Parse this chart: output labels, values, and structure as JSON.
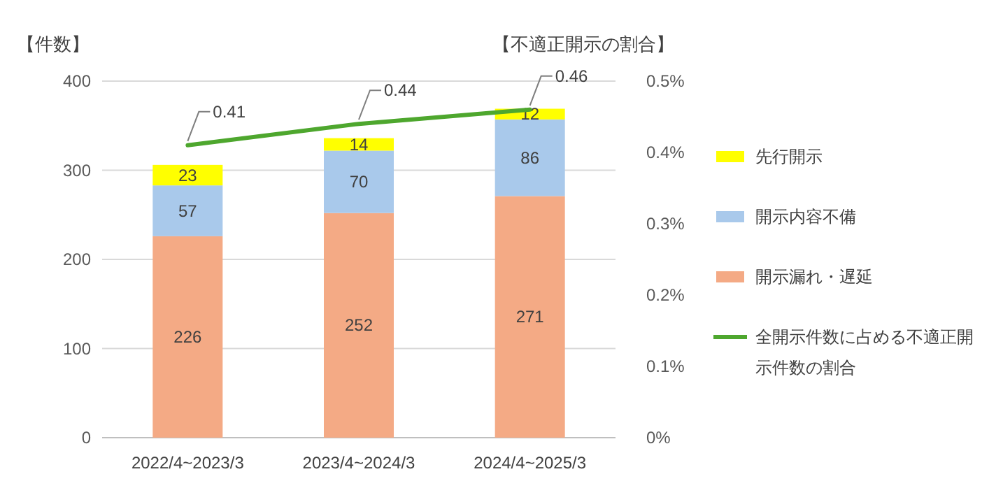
{
  "chart_data": {
    "type": "bar",
    "stacked": true,
    "ylabel": "【件数】",
    "y2label": "【不適正開示の割合】",
    "categories": [
      "2022/4~2023/3",
      "2023/4~2024/3",
      "2024/4~2025/3"
    ],
    "series": [
      {
        "name": "開示漏れ・遅延",
        "color": "#f4aa85",
        "values": [
          226,
          252,
          271
        ]
      },
      {
        "name": "開示内容不備",
        "color": "#a9c9eb",
        "values": [
          57,
          70,
          86
        ]
      },
      {
        "name": "先行開示",
        "color": "#ffff00",
        "values": [
          23,
          14,
          12
        ]
      },
      {
        "name": "全開示件数に占める不適正開示件数の割合",
        "type": "line",
        "axis": "y2",
        "color": "#4ea72e",
        "values": [
          0.41,
          0.44,
          0.46
        ]
      }
    ],
    "ylim": [
      0,
      400
    ],
    "yticks": [
      0,
      100,
      200,
      300,
      400
    ],
    "y2lim": [
      0,
      0.5
    ],
    "y2ticks": [
      {
        "value": 0,
        "label": "0%"
      },
      {
        "value": 0.1,
        "label": "0.1%"
      },
      {
        "value": 0.2,
        "label": "0.2%"
      },
      {
        "value": 0.3,
        "label": "0.3%"
      },
      {
        "value": 0.4,
        "label": "0.4%"
      },
      {
        "value": 0.5,
        "label": "0.5%"
      }
    ],
    "grid": "y",
    "legend": "right",
    "data_labels": true
  }
}
